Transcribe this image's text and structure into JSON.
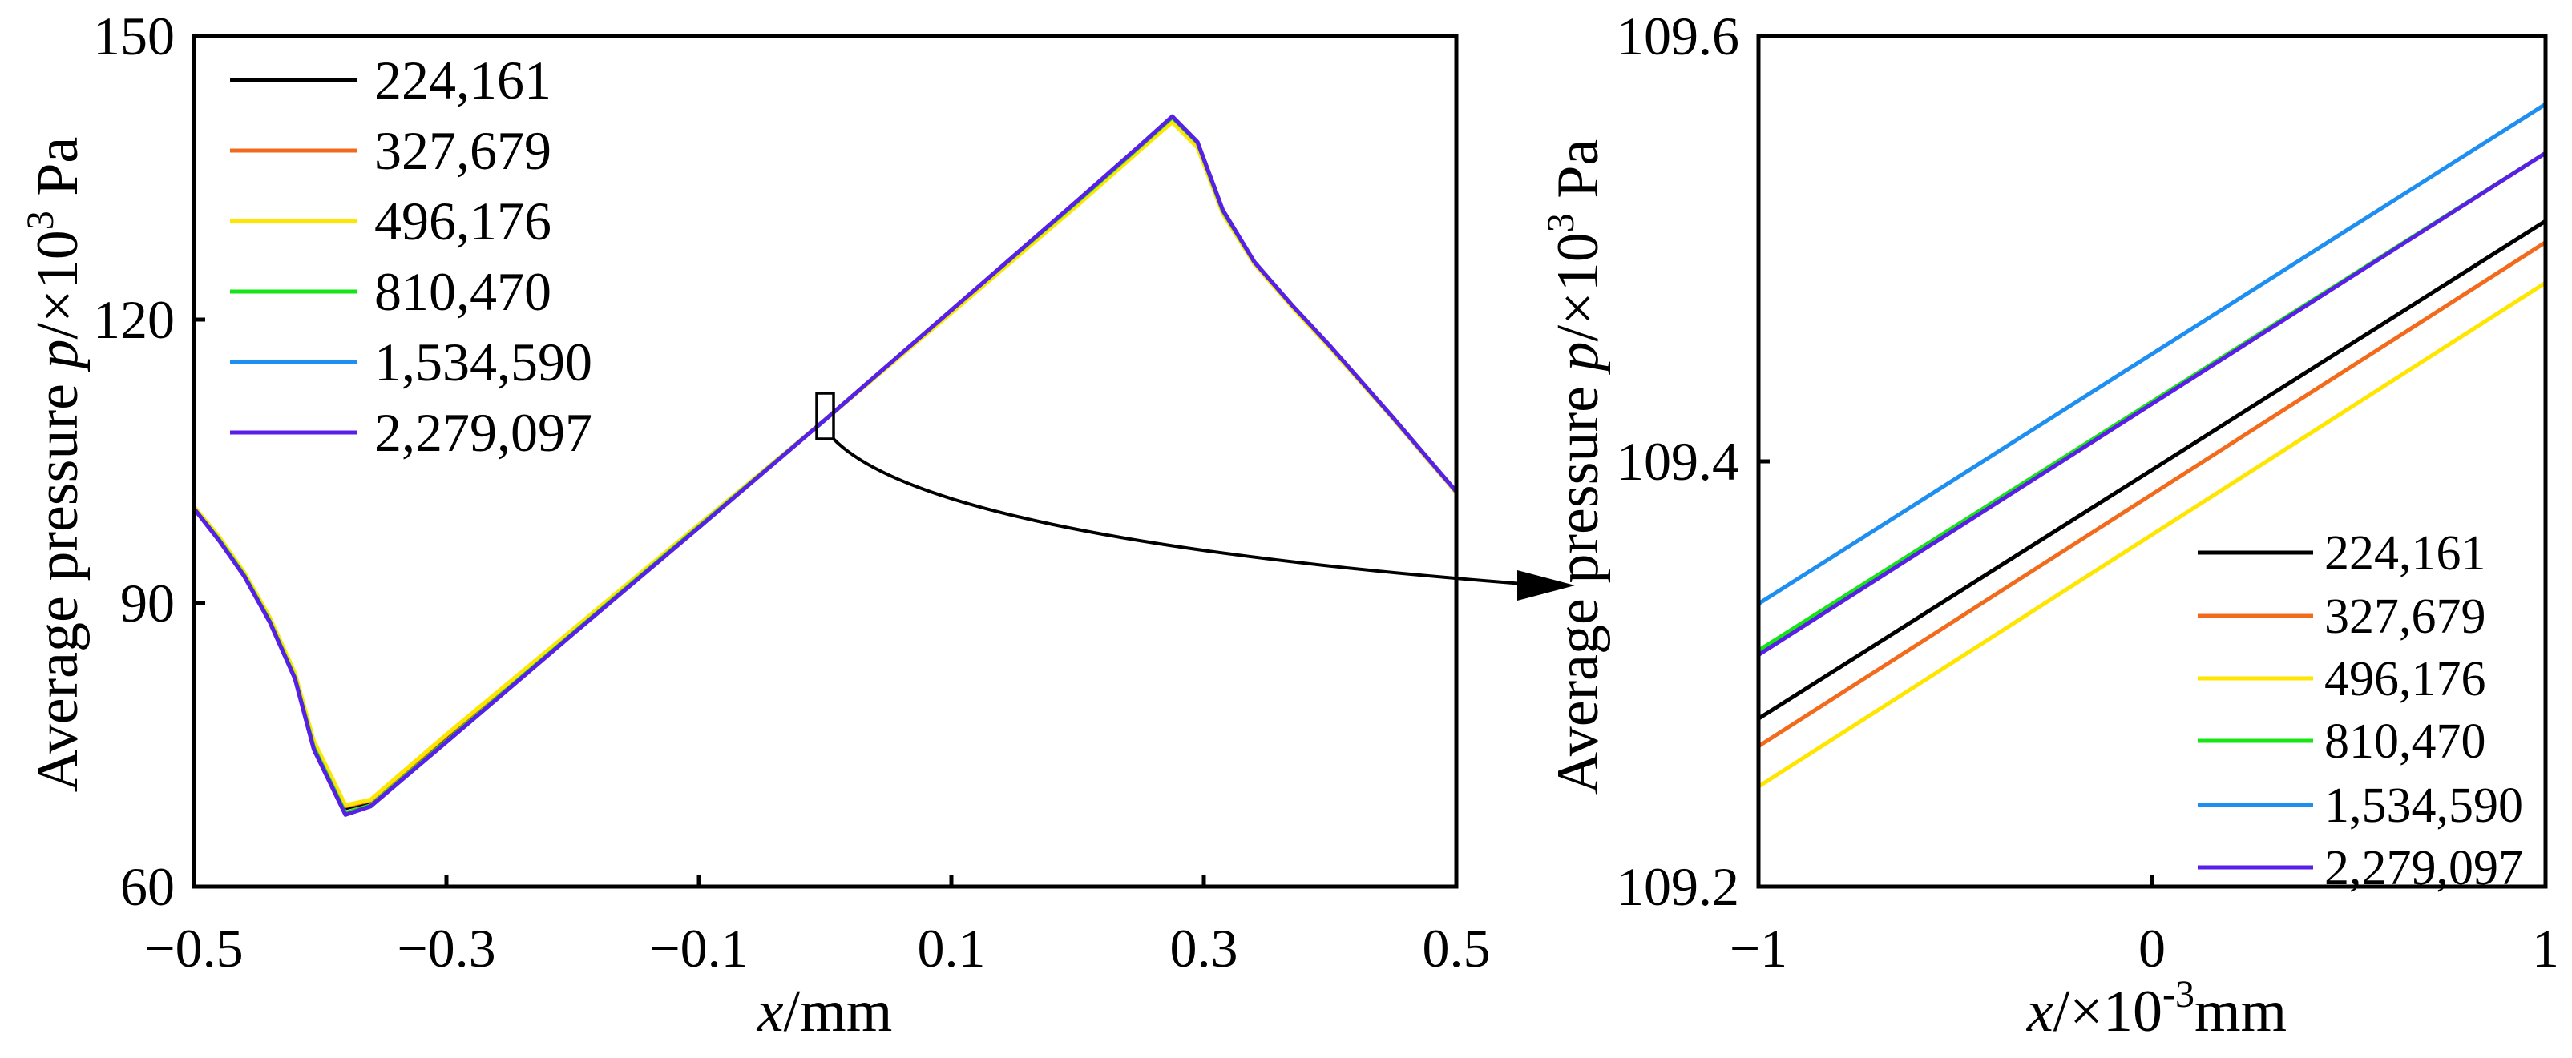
{
  "chart_data": [
    {
      "type": "line",
      "xlabel": {
        "var": "x",
        "unit": "/mm"
      },
      "ylabel": {
        "text": "Average pressure ",
        "var": "p",
        "unit": "/×10",
        "exp": "3",
        "suffix": " Pa"
      },
      "xlim": [
        -0.5,
        0.5
      ],
      "ylim": [
        60,
        150
      ],
      "grid": false,
      "legend_position": "upper-left",
      "xticks": [
        {
          "value": -0.5,
          "label": "−0.5"
        },
        {
          "value": -0.3,
          "label": "−0.3"
        },
        {
          "value": -0.1,
          "label": "−0.1"
        },
        {
          "value": 0.1,
          "label": "0.1"
        },
        {
          "value": 0.3,
          "label": "0.3"
        },
        {
          "value": 0.5,
          "label": "0.5"
        }
      ],
      "yticks": [
        {
          "value": 60,
          "label": "60"
        },
        {
          "value": 90,
          "label": "90"
        },
        {
          "value": 120,
          "label": "120"
        },
        {
          "value": 150,
          "label": "150"
        }
      ],
      "x": [
        -0.5,
        -0.48,
        -0.46,
        -0.44,
        -0.42,
        -0.405,
        -0.38,
        -0.36,
        -0.3,
        -0.2,
        -0.1,
        0,
        0.1,
        0.2,
        0.25,
        0.275,
        0.295,
        0.315,
        0.34,
        0.37,
        0.4,
        0.45,
        0.5
      ],
      "series": [
        {
          "name": "224,161",
          "color": "#000000",
          "values": [
            100.1,
            96.8,
            93.0,
            88.3,
            82.3,
            75.0,
            68.3,
            69.0,
            75.8,
            87.0,
            98.2,
            109.4,
            120.9,
            132.4,
            138.3,
            141.2,
            138.5,
            131.4,
            126.0,
            121.4,
            117.1,
            109.5,
            101.7
          ]
        },
        {
          "name": "327,679",
          "color": "#f26b1d",
          "values": [
            100.1,
            96.9,
            93.1,
            88.4,
            82.5,
            75.3,
            68.5,
            69.1,
            76.0,
            87.1,
            98.3,
            109.4,
            120.8,
            132.2,
            138.1,
            141.0,
            138.3,
            131.3,
            125.9,
            121.4,
            117.1,
            109.5,
            101.7
          ]
        },
        {
          "name": "496,176",
          "color": "#ffe600",
          "values": [
            100.2,
            97.0,
            93.2,
            88.5,
            82.6,
            75.4,
            68.6,
            69.2,
            76.1,
            87.2,
            98.3,
            109.4,
            120.7,
            132.1,
            138.0,
            140.9,
            138.2,
            131.2,
            125.9,
            121.3,
            117.0,
            109.5,
            101.7
          ]
        },
        {
          "name": "810,470",
          "color": "#14e614",
          "values": [
            100.0,
            96.7,
            92.9,
            88.1,
            82.1,
            74.7,
            67.8,
            68.6,
            75.4,
            86.8,
            98.1,
            109.4,
            121.0,
            132.5,
            138.4,
            141.4,
            138.7,
            131.5,
            126.1,
            121.5,
            117.2,
            109.6,
            101.8
          ]
        },
        {
          "name": "1,534,590",
          "color": "#1e8ff0",
          "values": [
            100.0,
            96.6,
            92.8,
            88.0,
            82.0,
            74.5,
            67.6,
            68.5,
            75.3,
            86.7,
            98.0,
            109.4,
            121.0,
            132.6,
            138.5,
            141.5,
            138.8,
            131.6,
            126.1,
            121.5,
            117.2,
            109.6,
            101.8
          ]
        },
        {
          "name": "2,279,097",
          "color": "#5a1fe6",
          "values": [
            100.0,
            96.6,
            92.8,
            88.0,
            82.0,
            74.5,
            67.6,
            68.5,
            75.3,
            86.7,
            98.0,
            109.4,
            121.0,
            132.6,
            138.5,
            141.5,
            138.8,
            131.6,
            126.1,
            121.5,
            117.2,
            109.6,
            101.8
          ]
        }
      ]
    },
    {
      "type": "line",
      "xlabel": {
        "var": "x",
        "unit": "/×10",
        "exp": "-3",
        "suffix": "mm"
      },
      "ylabel": {
        "text": "Average pressure ",
        "var": "p",
        "unit": "/×10",
        "exp": "3",
        "suffix": " Pa"
      },
      "xlim": [
        -1,
        1
      ],
      "ylim": [
        109.2,
        109.6
      ],
      "grid": false,
      "legend_position": "lower-right",
      "xticks": [
        {
          "value": -1,
          "label": "−1"
        },
        {
          "value": 0,
          "label": "0"
        },
        {
          "value": 1,
          "label": "1"
        }
      ],
      "yticks": [
        {
          "value": 109.2,
          "label": "109.2"
        },
        {
          "value": 109.4,
          "label": "109.4"
        },
        {
          "value": 109.6,
          "label": "109.6"
        }
      ],
      "x": [
        -1,
        1
      ],
      "series": [
        {
          "name": "224,161",
          "color": "#000000",
          "values": [
            109.279,
            109.513
          ]
        },
        {
          "name": "327,679",
          "color": "#f26b1d",
          "values": [
            109.266,
            109.503
          ]
        },
        {
          "name": "496,176",
          "color": "#ffe600",
          "values": [
            109.247,
            109.484
          ]
        },
        {
          "name": "810,470",
          "color": "#14e614",
          "values": [
            109.311,
            109.545
          ]
        },
        {
          "name": "1,534,590",
          "color": "#1e8ff0",
          "values": [
            109.333,
            109.568
          ]
        },
        {
          "name": "2,279,097",
          "color": "#5a1fe6",
          "values": [
            109.309,
            109.545
          ]
        }
      ]
    }
  ]
}
